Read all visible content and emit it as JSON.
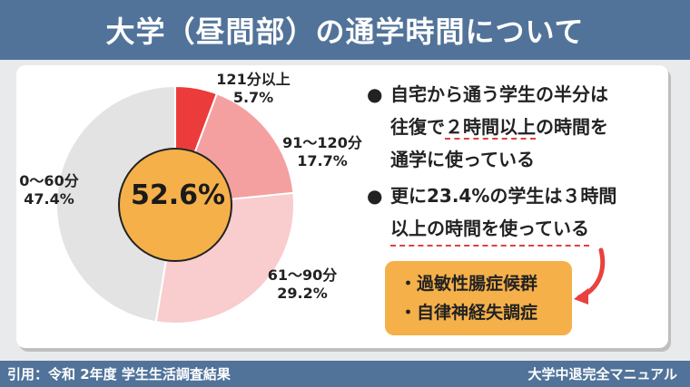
{
  "header": {
    "title": "大学（昼間部）の通学時間について"
  },
  "chart_data": {
    "type": "pie",
    "style": "donut",
    "center_label": "52.6%",
    "slices": [
      {
        "label": "121分以上",
        "value_label": "5.7%",
        "value": 5.7,
        "color": "#ec3b3b"
      },
      {
        "label": "91～120分",
        "value_label": "17.7%",
        "value": 17.7,
        "color": "#f5a0a0"
      },
      {
        "label": "61～90分",
        "value_label": "29.2%",
        "value": 29.2,
        "color": "#f9cccd"
      },
      {
        "label": "0～60分",
        "value_label": "47.4%",
        "value": 47.4,
        "color": "#e3e3e3"
      }
    ],
    "center_color": "#f5b04a"
  },
  "notes": {
    "bullet1": {
      "dot": "●",
      "line1": "自宅から通う学生の半分は",
      "line2_pre": "往復で",
      "line2_u": "２時間以上",
      "line2_post": "の時間を",
      "line3": "通学に使っている"
    },
    "bullet2": {
      "dot": "●",
      "line1": "更に23.4%の学生は３時間",
      "line2": "以上の時間を使っている"
    }
  },
  "callout": {
    "items": [
      "・過敏性腸症候群",
      "・自律神経失調症"
    ],
    "color": "#f5b04a"
  },
  "footer": {
    "source": "引用：令和  2年度 学生生活調査結果",
    "brand": "大学中退完全マニュアル"
  },
  "colors": {
    "header_bg": "#51739a",
    "underline": "#e04040",
    "arrow": "#e8413e"
  }
}
